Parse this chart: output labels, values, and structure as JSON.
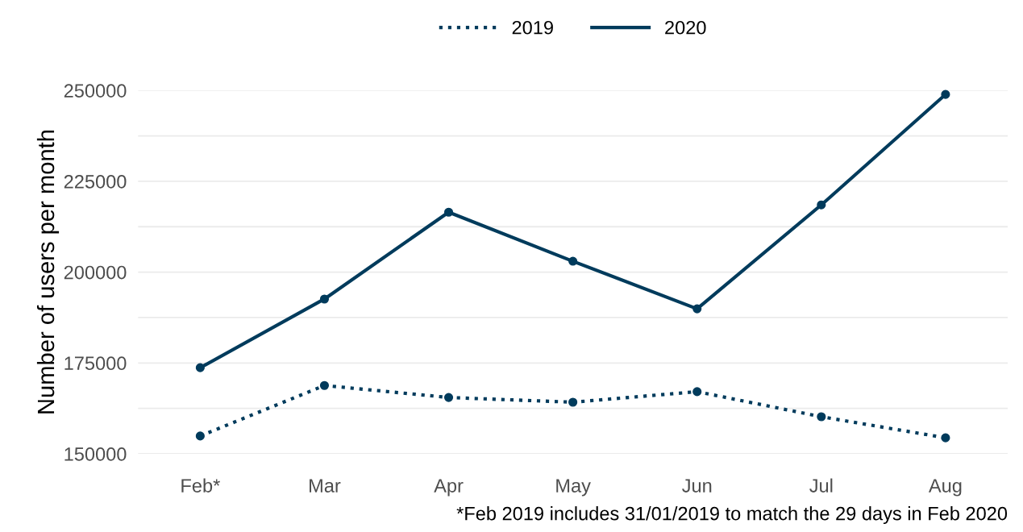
{
  "chart_data": {
    "type": "line",
    "ylabel": "Number of users per month",
    "categories": [
      "Feb*",
      "Mar",
      "Apr",
      "May",
      "Jun",
      "Jul",
      "Aug"
    ],
    "series": [
      {
        "name": "2019",
        "color": "#003b5c",
        "line_style": "dotted",
        "values": [
          154900,
          168800,
          165500,
          164200,
          167100,
          160200,
          154400
        ]
      },
      {
        "name": "2020",
        "color": "#003b5c",
        "line_style": "solid",
        "values": [
          173700,
          192600,
          216500,
          203000,
          189900,
          218500,
          248900
        ]
      }
    ],
    "ylim": [
      150000,
      250000
    ],
    "yticks": [
      150000,
      {
        "value": 162500,
        "label": null
      },
      175000,
      {
        "value": 187500,
        "label": null
      },
      200000,
      {
        "value": 212500,
        "label": null
      },
      225000,
      {
        "value": 237500,
        "label": null
      },
      250000
    ],
    "grid": true,
    "legend": "top",
    "marker": "circle",
    "annotations": [
      "*Feb 2019 includes 31/01/2019 to match the 29 days in Feb 2020"
    ]
  }
}
